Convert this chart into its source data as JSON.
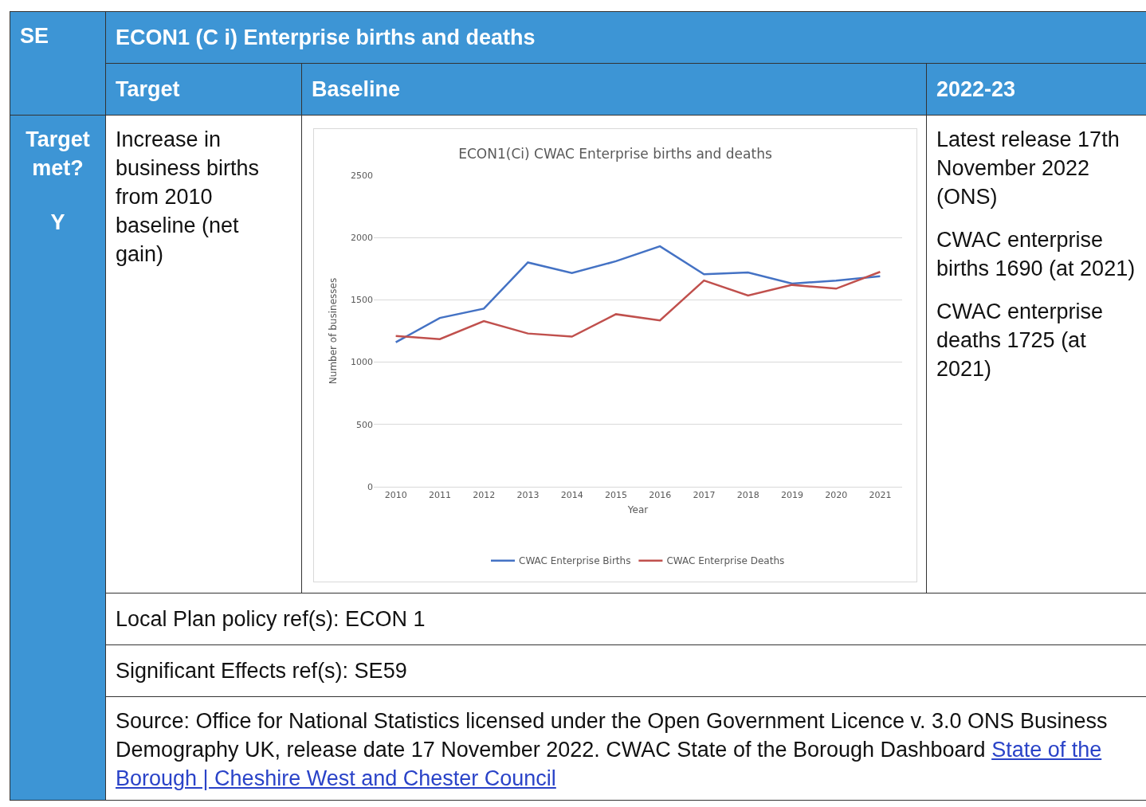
{
  "chart_data": {
    "type": "line",
    "title": "ECON1(Ci) CWAC Enterprise births and deaths",
    "xlabel": "Year",
    "ylabel": "Number of businesses",
    "categories": [
      "2010",
      "2011",
      "2012",
      "2013",
      "2014",
      "2015",
      "2016",
      "2017",
      "2018",
      "2019",
      "2020",
      "2021"
    ],
    "series": [
      {
        "name": "CWAC Enterprise Births",
        "color": "#4472c4",
        "values": [
          1160,
          1355,
          1430,
          1800,
          1715,
          1810,
          1930,
          1705,
          1720,
          1630,
          1655,
          1690
        ]
      },
      {
        "name": "CWAC Enterprise Deaths",
        "color": "#c0504d",
        "values": [
          1210,
          1185,
          1330,
          1230,
          1205,
          1385,
          1335,
          1655,
          1535,
          1620,
          1590,
          1725
        ]
      }
    ],
    "ylim": [
      0,
      2500
    ],
    "yticks": [
      0,
      500,
      1000,
      1500,
      2000,
      2500
    ],
    "grid": "y",
    "legend": "bottom",
    "marker": "none",
    "line_style": "solid",
    "annotations": [
      "SE",
      "ECON1 (C i) Enterprise births and deaths",
      "Target",
      "Baseline",
      "2022-23",
      "Target met?",
      "Y",
      "Increase in business births from 2010 baseline (net gain)",
      "Latest release 17th November 2022 (ONS)",
      "CWAC enterprise births 1690 (at 2021)",
      "CWAC enterprise deaths 1725 (at 2021)",
      "Local Plan policy ref(s): ECON 1",
      "Significant Effects ref(s): SE59",
      "Source: Office for National Statistics licensed under the Open Government Licence v. 3.0 ONS Business Demography UK, release date 17 November 2022. CWAC State of the Borough Dashboard",
      "State of the Borough | Cheshire West and Chester Council"
    ]
  }
}
